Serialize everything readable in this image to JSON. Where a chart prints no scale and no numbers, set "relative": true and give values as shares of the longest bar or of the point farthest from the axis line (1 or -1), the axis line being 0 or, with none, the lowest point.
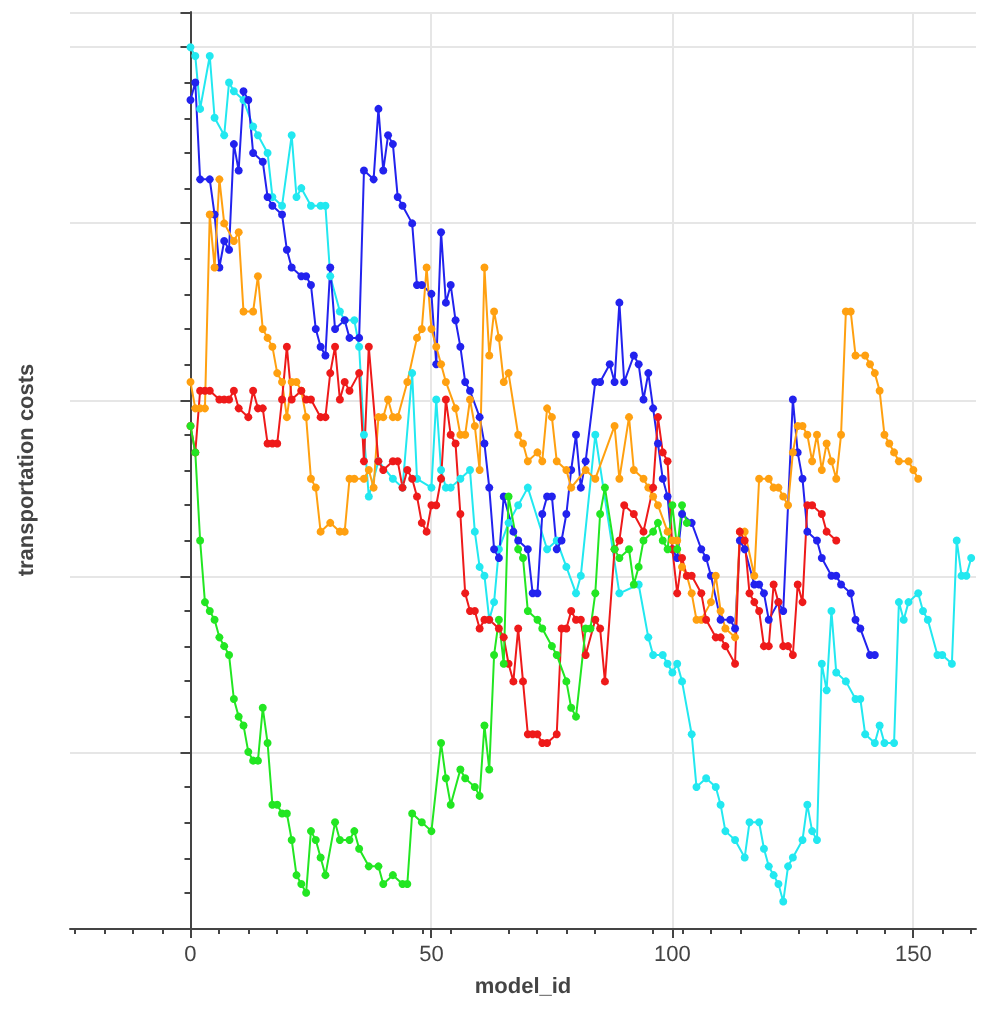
{
  "chart_data": {
    "type": "line",
    "xlabel": "model_id",
    "ylabel": "transportation costs",
    "relative": true,
    "xlim": [
      -25,
      163
    ],
    "xticks": [
      0,
      50,
      100,
      150
    ],
    "grid": true,
    "marker": "circle",
    "line_style": "solid",
    "series": [
      {
        "color": "#22e8f0",
        "x": [
          0,
          1,
          2,
          4,
          5,
          7,
          8,
          9,
          11,
          13,
          14,
          16,
          17,
          19,
          21,
          22,
          23,
          25,
          27,
          28,
          29,
          31,
          32,
          34,
          35,
          36,
          37,
          39,
          42,
          44,
          46,
          47,
          50,
          51,
          52,
          53,
          54,
          56,
          58,
          59,
          60,
          61,
          62,
          63,
          64,
          66,
          68,
          70,
          74,
          76,
          78,
          80,
          81,
          84,
          89,
          93,
          95,
          96,
          98,
          99,
          100,
          101,
          102,
          104,
          105,
          107,
          109,
          110,
          111,
          113,
          115,
          116,
          118,
          119,
          120,
          121,
          122,
          123,
          124,
          125,
          127,
          128,
          129,
          130,
          131,
          132,
          133,
          134,
          136,
          138,
          139,
          140,
          142,
          143,
          144,
          146,
          147,
          148,
          149,
          151,
          152,
          153,
          155,
          156,
          158,
          159,
          160,
          161,
          162
        ],
        "values": [
          1.0,
          0.99,
          0.93,
          0.99,
          0.92,
          0.9,
          0.96,
          0.95,
          0.94,
          0.91,
          0.9,
          0.88,
          0.83,
          0.82,
          0.9,
          0.83,
          0.84,
          0.82,
          0.82,
          0.82,
          0.74,
          0.7,
          0.69,
          0.69,
          0.66,
          0.56,
          0.49,
          0.53,
          0.51,
          0.5,
          0.63,
          0.51,
          0.5,
          0.6,
          0.52,
          0.5,
          0.5,
          0.51,
          0.52,
          0.45,
          0.41,
          0.4,
          0.35,
          0.37,
          0.43,
          0.46,
          0.48,
          0.5,
          0.43,
          0.44,
          0.41,
          0.38,
          0.4,
          0.56,
          0.38,
          0.39,
          0.33,
          0.31,
          0.31,
          0.3,
          0.29,
          0.3,
          0.28,
          0.22,
          0.16,
          0.17,
          0.16,
          0.14,
          0.11,
          0.1,
          0.08,
          0.12,
          0.12,
          0.09,
          0.07,
          0.06,
          0.05,
          0.03,
          0.07,
          0.08,
          0.1,
          0.14,
          0.11,
          0.1,
          0.3,
          0.27,
          0.36,
          0.29,
          0.28,
          0.26,
          0.26,
          0.22,
          0.21,
          0.23,
          0.21,
          0.21,
          0.37,
          0.35,
          0.37,
          0.38,
          0.36,
          0.35,
          0.31,
          0.31,
          0.3,
          0.44,
          0.4,
          0.4,
          0.42
        ]
      },
      {
        "color": "#2222ee",
        "x": [
          0,
          1,
          2,
          4,
          5,
          6,
          7,
          8,
          9,
          10,
          11,
          12,
          13,
          15,
          16,
          17,
          19,
          20,
          21,
          23,
          24,
          25,
          26,
          27,
          28,
          29,
          30,
          32,
          33,
          35,
          36,
          38,
          39,
          40,
          41,
          42,
          43,
          44,
          46,
          47,
          48,
          50,
          51,
          52,
          53,
          54,
          55,
          56,
          57,
          58,
          60,
          61,
          62,
          63,
          64,
          65,
          67,
          68,
          70,
          71,
          72,
          73,
          74,
          75,
          76,
          77,
          78,
          79,
          80,
          81,
          82,
          84,
          85,
          87,
          88,
          89,
          90,
          92,
          93,
          94,
          95,
          96,
          97,
          98,
          99,
          100,
          101,
          102,
          104,
          106,
          107,
          108,
          110,
          112,
          113,
          114,
          115,
          117,
          118,
          119,
          120,
          122,
          123,
          125,
          126,
          127,
          128,
          130,
          131,
          133,
          134,
          135,
          137,
          138,
          139,
          141,
          142
        ],
        "values": [
          0.94,
          0.96,
          0.85,
          0.85,
          0.81,
          0.75,
          0.78,
          0.77,
          0.89,
          0.86,
          0.95,
          0.94,
          0.88,
          0.87,
          0.83,
          0.82,
          0.81,
          0.77,
          0.75,
          0.74,
          0.74,
          0.73,
          0.68,
          0.66,
          0.65,
          0.75,
          0.68,
          0.69,
          0.67,
          0.67,
          0.86,
          0.85,
          0.93,
          0.86,
          0.9,
          0.89,
          0.83,
          0.82,
          0.8,
          0.73,
          0.73,
          0.72,
          0.64,
          0.79,
          0.71,
          0.73,
          0.69,
          0.66,
          0.62,
          0.61,
          0.58,
          0.55,
          0.5,
          0.43,
          0.42,
          0.49,
          0.45,
          0.44,
          0.43,
          0.38,
          0.38,
          0.47,
          0.49,
          0.49,
          0.43,
          0.44,
          0.47,
          0.52,
          0.56,
          0.5,
          0.53,
          0.62,
          0.62,
          0.64,
          0.62,
          0.71,
          0.62,
          0.65,
          0.64,
          0.6,
          0.63,
          0.59,
          0.55,
          0.51,
          0.49,
          0.43,
          0.42,
          0.47,
          0.46,
          0.43,
          0.42,
          0.4,
          0.35,
          0.35,
          0.34,
          0.44,
          0.43,
          0.39,
          0.39,
          0.38,
          0.35,
          0.37,
          0.36,
          0.6,
          0.54,
          0.51,
          0.45,
          0.44,
          0.42,
          0.4,
          0.4,
          0.39,
          0.38,
          0.35,
          0.34,
          0.31,
          0.31
        ]
      },
      {
        "color": "#ffa010",
        "x": [
          0,
          1,
          2,
          3,
          4,
          5,
          6,
          7,
          9,
          10,
          11,
          13,
          14,
          15,
          16,
          17,
          18,
          19,
          20,
          21,
          22,
          23,
          24,
          25,
          26,
          27,
          29,
          31,
          32,
          33,
          34,
          36,
          37,
          38,
          39,
          40,
          41,
          42,
          43,
          45,
          47,
          48,
          49,
          50,
          51,
          52,
          53,
          55,
          56,
          57,
          58,
          59,
          60,
          61,
          62,
          63,
          64,
          65,
          66,
          68,
          69,
          70,
          72,
          73,
          74,
          75,
          76,
          78,
          79,
          82,
          84,
          88,
          89,
          91,
          92,
          94,
          95,
          96,
          97,
          99,
          100,
          101,
          102,
          103,
          104,
          105,
          106,
          108,
          109,
          110,
          111,
          113,
          114,
          115,
          117,
          118,
          120,
          121,
          122,
          123,
          124,
          125,
          126,
          127,
          128,
          129,
          130,
          131,
          132,
          133,
          134,
          135,
          136,
          137,
          138,
          140,
          141,
          142,
          143,
          144,
          145,
          146,
          147,
          149,
          150,
          151
        ],
        "values": [
          0.62,
          0.59,
          0.59,
          0.59,
          0.81,
          0.75,
          0.85,
          0.8,
          0.78,
          0.79,
          0.7,
          0.7,
          0.74,
          0.68,
          0.67,
          0.66,
          0.63,
          0.62,
          0.58,
          0.62,
          0.62,
          0.61,
          0.58,
          0.51,
          0.5,
          0.45,
          0.46,
          0.45,
          0.45,
          0.51,
          0.51,
          0.51,
          0.52,
          0.5,
          0.58,
          0.58,
          0.6,
          0.58,
          0.58,
          0.62,
          0.67,
          0.68,
          0.75,
          0.68,
          0.66,
          0.64,
          0.62,
          0.59,
          0.56,
          0.56,
          0.6,
          0.57,
          0.52,
          0.75,
          0.65,
          0.7,
          0.67,
          0.62,
          0.63,
          0.56,
          0.55,
          0.53,
          0.54,
          0.53,
          0.59,
          0.58,
          0.53,
          0.52,
          0.5,
          0.52,
          0.51,
          0.57,
          0.51,
          0.58,
          0.52,
          0.51,
          0.5,
          0.49,
          0.48,
          0.45,
          0.44,
          0.44,
          0.41,
          0.4,
          0.38,
          0.35,
          0.35,
          0.37,
          0.4,
          0.36,
          0.34,
          0.33,
          0.45,
          0.45,
          0.4,
          0.51,
          0.51,
          0.5,
          0.5,
          0.49,
          0.48,
          0.54,
          0.57,
          0.57,
          0.56,
          0.53,
          0.56,
          0.52,
          0.55,
          0.53,
          0.51,
          0.56,
          0.7,
          0.7,
          0.65,
          0.65,
          0.64,
          0.63,
          0.61,
          0.56,
          0.55,
          0.54,
          0.53,
          0.53,
          0.52,
          0.51
        ]
      },
      {
        "color": "#ee1a1a",
        "x": [
          0,
          1,
          2,
          3,
          4,
          6,
          7,
          8,
          9,
          10,
          12,
          13,
          14,
          15,
          16,
          17,
          18,
          19,
          20,
          21,
          23,
          24,
          25,
          27,
          28,
          29,
          30,
          31,
          32,
          33,
          35,
          36,
          37,
          39,
          40,
          42,
          43,
          44,
          45,
          46,
          47,
          48,
          49,
          50,
          51,
          52,
          53,
          54,
          55,
          56,
          57,
          58,
          59,
          60,
          61,
          62,
          64,
          65,
          66,
          67,
          68,
          69,
          70,
          71,
          72,
          73,
          74,
          76,
          77,
          78,
          79,
          80,
          81,
          82,
          84,
          85,
          86,
          88,
          89,
          90,
          92,
          94,
          96,
          97,
          98,
          99,
          100,
          101,
          102,
          103,
          104,
          106,
          107,
          109,
          110,
          111,
          113,
          114,
          115,
          116,
          117,
          118,
          119,
          120,
          121,
          122,
          123,
          124,
          125,
          126,
          127,
          128,
          129,
          131,
          132,
          134
        ],
        "values": [
          0.57,
          0.54,
          0.61,
          0.61,
          0.61,
          0.6,
          0.6,
          0.6,
          0.61,
          0.59,
          0.58,
          0.61,
          0.59,
          0.59,
          0.55,
          0.55,
          0.55,
          0.6,
          0.66,
          0.6,
          0.61,
          0.6,
          0.6,
          0.58,
          0.58,
          0.63,
          0.66,
          0.6,
          0.62,
          0.61,
          0.63,
          0.53,
          0.66,
          0.53,
          0.52,
          0.53,
          0.53,
          0.5,
          0.52,
          0.51,
          0.49,
          0.46,
          0.45,
          0.48,
          0.48,
          0.51,
          0.6,
          0.56,
          0.55,
          0.47,
          0.38,
          0.36,
          0.36,
          0.34,
          0.35,
          0.35,
          0.34,
          0.33,
          0.3,
          0.28,
          0.34,
          0.28,
          0.22,
          0.22,
          0.22,
          0.21,
          0.21,
          0.22,
          0.34,
          0.34,
          0.36,
          0.35,
          0.35,
          0.31,
          0.35,
          0.34,
          0.28,
          0.43,
          0.44,
          0.48,
          0.47,
          0.45,
          0.5,
          0.58,
          0.54,
          0.53,
          0.43,
          0.38,
          0.42,
          0.4,
          0.4,
          0.38,
          0.35,
          0.33,
          0.33,
          0.32,
          0.3,
          0.45,
          0.44,
          0.38,
          0.37,
          0.36,
          0.32,
          0.32,
          0.39,
          0.37,
          0.32,
          0.32,
          0.31,
          0.39,
          0.37,
          0.48,
          0.48,
          0.47,
          0.45,
          0.44
        ]
      },
      {
        "color": "#22e622",
        "x": [
          0,
          1,
          2,
          3,
          4,
          5,
          6,
          7,
          8,
          9,
          10,
          11,
          12,
          13,
          14,
          15,
          16,
          17,
          18,
          19,
          20,
          21,
          22,
          23,
          24,
          25,
          26,
          27,
          28,
          30,
          31,
          33,
          34,
          35,
          37,
          39,
          40,
          42,
          44,
          45,
          46,
          48,
          50,
          52,
          53,
          54,
          56,
          57,
          59,
          60,
          61,
          62,
          63,
          64,
          65,
          66,
          68,
          69,
          70,
          72,
          73,
          75,
          76,
          78,
          79,
          80,
          82,
          83,
          84,
          85,
          86,
          88,
          89,
          91,
          92,
          93,
          94,
          96,
          97,
          98,
          99,
          100,
          101,
          102,
          103
        ],
        "values": [
          0.57,
          0.54,
          0.44,
          0.37,
          0.36,
          0.35,
          0.33,
          0.32,
          0.31,
          0.26,
          0.24,
          0.23,
          0.2,
          0.19,
          0.19,
          0.25,
          0.21,
          0.14,
          0.14,
          0.13,
          0.13,
          0.1,
          0.06,
          0.05,
          0.04,
          0.11,
          0.1,
          0.08,
          0.06,
          0.12,
          0.1,
          0.1,
          0.11,
          0.09,
          0.07,
          0.07,
          0.05,
          0.06,
          0.05,
          0.05,
          0.13,
          0.12,
          0.11,
          0.21,
          0.17,
          0.14,
          0.18,
          0.17,
          0.16,
          0.15,
          0.23,
          0.18,
          0.31,
          0.35,
          0.3,
          0.49,
          0.43,
          0.42,
          0.36,
          0.35,
          0.34,
          0.32,
          0.31,
          0.28,
          0.25,
          0.24,
          0.34,
          0.34,
          0.38,
          0.47,
          0.5,
          0.43,
          0.42,
          0.43,
          0.39,
          0.41,
          0.44,
          0.45,
          0.46,
          0.44,
          0.43,
          0.48,
          0.43,
          0.48,
          0.46
        ]
      }
    ]
  }
}
